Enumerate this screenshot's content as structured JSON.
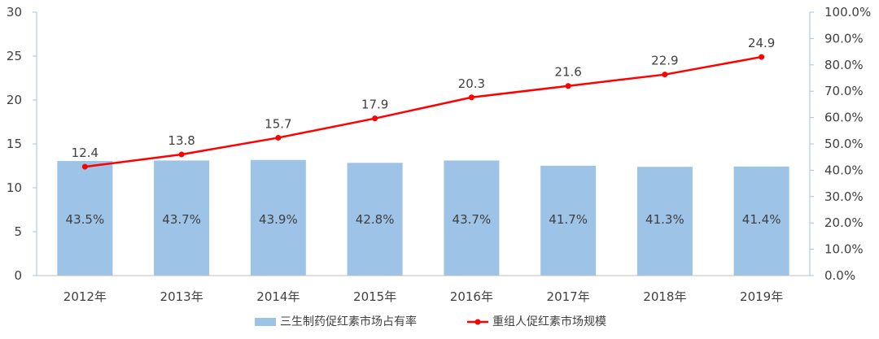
{
  "chart_data": {
    "type": "bar",
    "categories": [
      "2012年",
      "2013年",
      "2014年",
      "2015年",
      "2016年",
      "2017年",
      "2018年",
      "2019年"
    ],
    "series": [
      {
        "name": "三生制药促红素市场占有率",
        "type": "bar",
        "axis": "right",
        "values": [
          43.5,
          43.7,
          43.9,
          42.8,
          43.7,
          41.7,
          41.3,
          41.4
        ],
        "labels": [
          "43.5%",
          "43.7%",
          "43.9%",
          "42.8%",
          "43.7%",
          "41.7%",
          "41.3%",
          "41.4%"
        ],
        "color": "#9DC3E6"
      },
      {
        "name": "重组人促红素市场规模",
        "type": "line",
        "axis": "left",
        "values": [
          12.4,
          13.8,
          15.7,
          17.9,
          20.3,
          21.6,
          22.9,
          24.9
        ],
        "labels": [
          "12.4",
          "13.8",
          "15.7",
          "17.9",
          "20.3",
          "21.6",
          "22.9",
          "24.9"
        ],
        "color": "#FF0000"
      }
    ],
    "y_left": {
      "range": [
        0,
        30
      ],
      "ticks": [
        0,
        5,
        10,
        15,
        20,
        25,
        30
      ],
      "tick_labels": [
        "0",
        "5",
        "10",
        "15",
        "20",
        "25",
        "30"
      ]
    },
    "y_right": {
      "range": [
        0,
        100
      ],
      "ticks": [
        0,
        10,
        20,
        30,
        40,
        50,
        60,
        70,
        80,
        90,
        100
      ],
      "tick_labels": [
        "0.0%",
        "10.0%",
        "20.0%",
        "30.0%",
        "40.0%",
        "50.0%",
        "60.0%",
        "70.0%",
        "80.0%",
        "90.0%",
        "100.0%"
      ]
    },
    "grid": false,
    "legend": {
      "position": "bottom"
    },
    "axis_color": "#9DC3E6"
  }
}
